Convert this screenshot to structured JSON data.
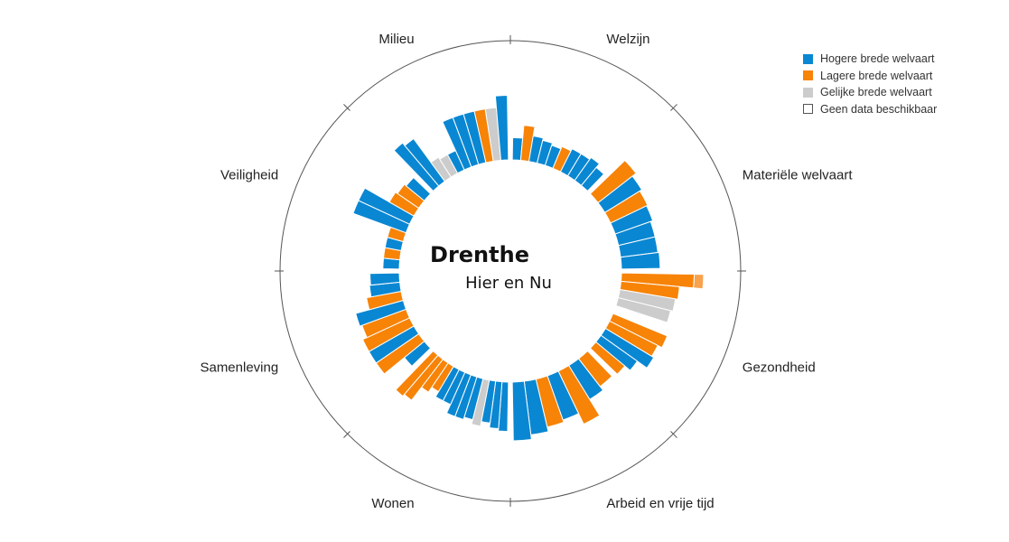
{
  "chart_data": {
    "type": "radial-bar",
    "title": "Drenthe",
    "subtitle": "Hier en Nu",
    "legend": [
      {
        "key": "higher",
        "label": "Hogere brede welvaart",
        "color": "#0a87d2"
      },
      {
        "key": "lower",
        "label": "Lagere brede welvaart",
        "color": "#f78307"
      },
      {
        "key": "equal",
        "label": "Gelijke brede welvaart",
        "color": "#cccccc"
      },
      {
        "key": "none",
        "label": "Geen data beschikbaar",
        "color": "#ffffff"
      }
    ],
    "categories": [
      {
        "name": "Welzijn",
        "bars": [
          {
            "c": "higher",
            "v": 0.19
          },
          {
            "c": "lower",
            "v": 0.3
          },
          {
            "c": "higher",
            "v": 0.22
          },
          {
            "c": "higher",
            "v": 0.2
          },
          {
            "c": "higher",
            "v": 0.18
          },
          {
            "c": "lower",
            "v": 0.2
          },
          {
            "c": "higher",
            "v": 0.22
          },
          {
            "c": "higher",
            "v": 0.22
          },
          {
            "c": "higher",
            "v": 0.24
          },
          {
            "c": "higher",
            "v": 0.2
          }
        ]
      },
      {
        "name": "Materiële welvaart",
        "bars": [
          {
            "c": "lower",
            "v": 0.41
          },
          {
            "c": "higher",
            "v": 0.37
          },
          {
            "c": "lower",
            "v": 0.35
          },
          {
            "c": "higher",
            "v": 0.34
          },
          {
            "c": "higher",
            "v": 0.32
          },
          {
            "c": "higher",
            "v": 0.32
          },
          {
            "c": "higher",
            "v": 0.33
          }
        ]
      },
      {
        "name": "Gezondheid",
        "bars": [
          {
            "c": "lower",
            "v": 0.7
          },
          {
            "c": "lower",
            "v": 0.5
          },
          {
            "c": "equal",
            "v": 0.48
          },
          {
            "c": "equal",
            "v": 0.46
          },
          {
            "c": "none",
            "v": 0.1
          },
          {
            "c": "lower",
            "v": 0.5
          },
          {
            "c": "lower",
            "v": 0.46
          },
          {
            "c": "higher",
            "v": 0.48
          },
          {
            "c": "higher",
            "v": 0.38
          },
          {
            "c": "lower",
            "v": 0.32
          }
        ]
      },
      {
        "name": "Arbeid en vrije tijd",
        "bars": [
          {
            "c": "lower",
            "v": 0.3
          },
          {
            "c": "higher",
            "v": 0.34
          },
          {
            "c": "lower",
            "v": 0.5
          },
          {
            "c": "higher",
            "v": 0.4
          },
          {
            "c": "lower",
            "v": 0.42
          },
          {
            "c": "higher",
            "v": 0.46
          },
          {
            "c": "higher",
            "v": 0.5
          }
        ]
      },
      {
        "name": "Wonen",
        "bars": [
          {
            "c": "higher",
            "v": 0.42
          },
          {
            "c": "higher",
            "v": 0.4
          },
          {
            "c": "higher",
            "v": 0.36
          },
          {
            "c": "equal",
            "v": 0.4
          },
          {
            "c": "higher",
            "v": 0.36
          },
          {
            "c": "higher",
            "v": 0.38
          },
          {
            "c": "higher",
            "v": 0.38
          },
          {
            "c": "higher",
            "v": 0.3
          },
          {
            "c": "higher",
            "v": 0.3
          },
          {
            "c": "lower",
            "v": 0.25
          },
          {
            "c": "lower",
            "v": 0.3
          },
          {
            "c": "lower",
            "v": 0.44
          },
          {
            "c": "lower",
            "v": 0.46
          }
        ]
      },
      {
        "name": "Samenleving",
        "bars": [
          {
            "c": "higher",
            "v": 0.22
          },
          {
            "c": "lower",
            "v": 0.44
          },
          {
            "c": "higher",
            "v": 0.44
          },
          {
            "c": "lower",
            "v": 0.44
          },
          {
            "c": "lower",
            "v": 0.4
          },
          {
            "c": "higher",
            "v": 0.42
          },
          {
            "c": "lower",
            "v": 0.3
          },
          {
            "c": "higher",
            "v": 0.26
          },
          {
            "c": "higher",
            "v": 0.25
          }
        ]
      },
      {
        "name": "Veiligheid",
        "bars": [
          {
            "c": "higher",
            "v": 0.14
          },
          {
            "c": "lower",
            "v": 0.14
          },
          {
            "c": "higher",
            "v": 0.14
          },
          {
            "c": "lower",
            "v": 0.14
          },
          {
            "c": "higher",
            "v": 0.48
          },
          {
            "c": "higher",
            "v": 0.48
          },
          {
            "c": "lower",
            "v": 0.24
          },
          {
            "c": "lower",
            "v": 0.22
          },
          {
            "c": "higher",
            "v": 0.2
          }
        ]
      },
      {
        "name": "Milieu",
        "bars": [
          {
            "c": "higher",
            "v": 0.48
          },
          {
            "c": "higher",
            "v": 0.45
          },
          {
            "c": "equal",
            "v": 0.2
          },
          {
            "c": "equal",
            "v": 0.18
          },
          {
            "c": "higher",
            "v": 0.18
          },
          {
            "c": "higher",
            "v": 0.45
          },
          {
            "c": "higher",
            "v": 0.45
          },
          {
            "c": "higher",
            "v": 0.45
          },
          {
            "c": "lower",
            "v": 0.45
          },
          {
            "c": "equal",
            "v": 0.45
          },
          {
            "c": "higher",
            "v": 0.55
          }
        ]
      }
    ],
    "grid": false
  }
}
